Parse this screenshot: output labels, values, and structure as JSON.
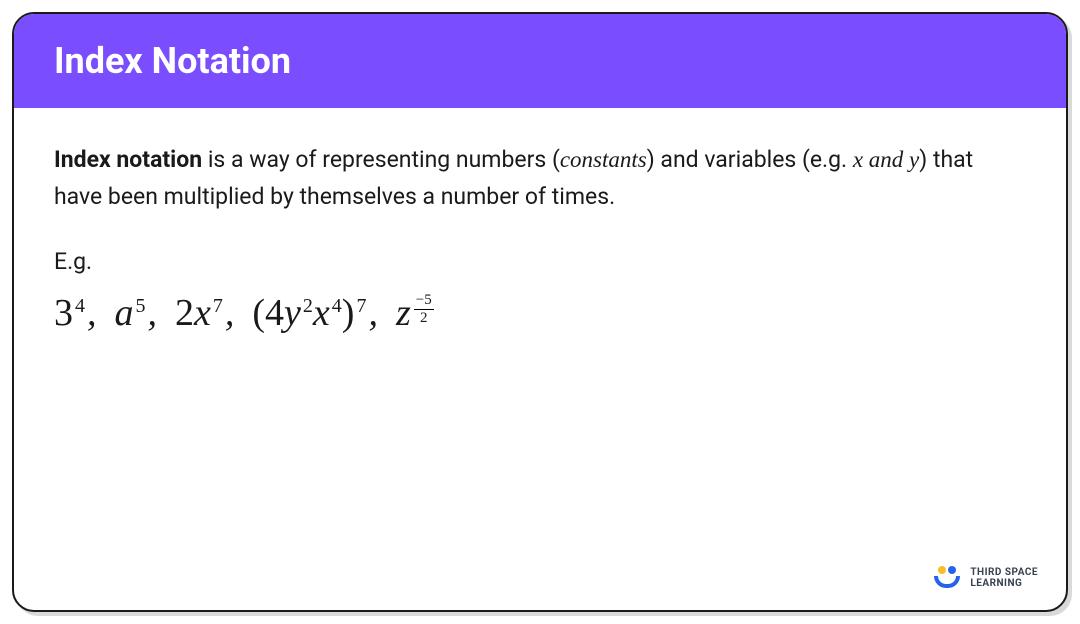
{
  "header": {
    "title": "Index Notation",
    "bg_color": "#7a4dff",
    "text_color": "#ffffff"
  },
  "intro": {
    "strong": "Index notation",
    "text1": " is a way of representing numbers (",
    "italic1": "constants",
    "text2": ") and variables (e.g. ",
    "italic2": "x and y",
    "text3": ") that have been multiplied by themselves a number of times."
  },
  "eg_label": "E.g.",
  "math": {
    "t1_base": "3",
    "t1_sup": "4",
    "t2_base": "a",
    "t2_sup": "5",
    "t3_coef": "2",
    "t3_base": "x",
    "t3_sup": "7",
    "t4_open": "(",
    "t4_coef": "4",
    "t4_v1": "y",
    "t4_s1": "2",
    "t4_v2": "x",
    "t4_s2": "4",
    "t4_close": ")",
    "t4_sup": "7",
    "t5_base": "z",
    "t5_top": "−5",
    "t5_bot": "2",
    "comma": ","
  },
  "logo": {
    "line1": "THIRD SPACE",
    "line2": "LEARNING"
  },
  "colors": {
    "card_border": "#1a1a1a",
    "body_text": "#1a1a1a"
  }
}
